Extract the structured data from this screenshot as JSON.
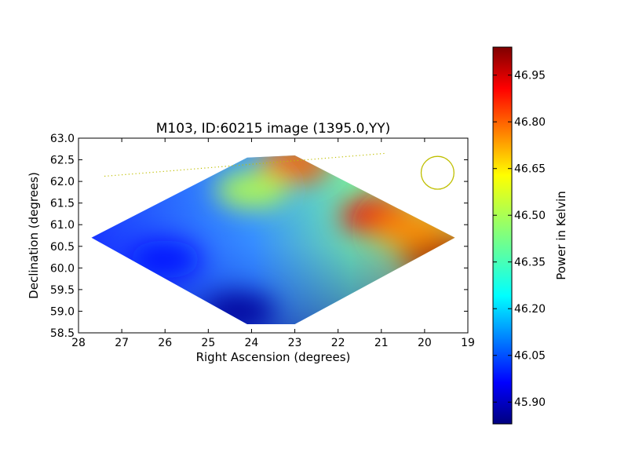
{
  "chart_data": {
    "type": "heatmap",
    "title": "M103, ID:60215 image (1395.0,YY)",
    "xlabel": "Right Ascension (degrees)",
    "ylabel": "Declination (degrees)",
    "xlim": [
      28,
      19
    ],
    "ylim": [
      58.5,
      63.0
    ],
    "x_ticks": [
      28,
      27,
      26,
      25,
      24,
      23,
      22,
      21,
      20,
      19
    ],
    "x_tick_labels": [
      "28",
      "27",
      "26",
      "25",
      "24",
      "23",
      "22",
      "21",
      "20",
      "19"
    ],
    "y_ticks": [
      58.5,
      59.0,
      59.5,
      60.0,
      60.5,
      61.0,
      61.5,
      62.0,
      62.5,
      63.0
    ],
    "y_tick_labels": [
      "58.5",
      "59.0",
      "59.5",
      "60.0",
      "60.5",
      "61.0",
      "61.5",
      "62.0",
      "62.5",
      "63.0"
    ],
    "colorbar": {
      "label": "Power in Kelvin",
      "colormap": "jet",
      "range": [
        45.83,
        47.04
      ],
      "ticks": [
        45.9,
        46.05,
        46.2,
        46.35,
        46.5,
        46.65,
        46.8,
        46.95
      ],
      "tick_labels": [
        "45.90",
        "46.05",
        "46.20",
        "46.35",
        "46.50",
        "46.65",
        "46.80",
        "46.95"
      ]
    },
    "map_outline": [
      [
        27.7,
        60.7
      ],
      [
        24.1,
        62.55
      ],
      [
        23.0,
        62.6
      ],
      [
        19.3,
        60.7
      ],
      [
        23.0,
        58.7
      ],
      [
        24.1,
        58.7
      ]
    ],
    "hotspots": [
      {
        "ra": 19.7,
        "dec": 60.3,
        "value": 47.0
      },
      {
        "ra": 21.1,
        "dec": 61.2,
        "value": 46.9
      },
      {
        "ra": 23.0,
        "dec": 62.4,
        "value": 46.78
      },
      {
        "ra": 20.3,
        "dec": 60.9,
        "value": 46.72
      },
      {
        "ra": 24.3,
        "dec": 59.0,
        "value": 45.86
      },
      {
        "ra": 26.0,
        "dec": 60.2,
        "value": 46.0
      },
      {
        "ra": 24.0,
        "dec": 61.8,
        "value": 46.5
      }
    ],
    "beam_circle": {
      "ra": 19.7,
      "dec": 62.2,
      "radius_deg": 0.38,
      "color": "#bfbf00"
    },
    "dotted_line": {
      "points": [
        [
          27.4,
          62.12
        ],
        [
          20.9,
          62.65
        ]
      ],
      "color": "#bfbf00"
    },
    "grid": false
  }
}
